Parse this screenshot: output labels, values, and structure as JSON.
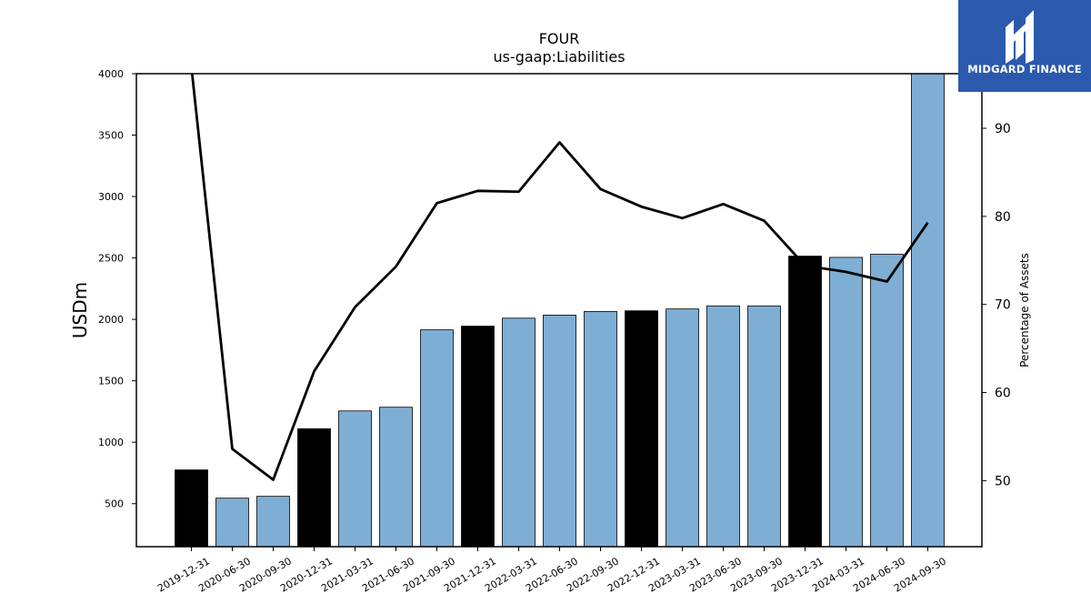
{
  "brand": {
    "name": "MIDGARD FINANCE",
    "color": "#2b59ad"
  },
  "chart_data": {
    "type": "bar",
    "title": "FOUR",
    "subtitle": "us-gaap:Liabilities",
    "ylabel": "USDm",
    "y2label": "Percentage of Assets",
    "ylim": [
      150,
      4000
    ],
    "y2lim": [
      42.5,
      96.2
    ],
    "yticks": [
      500,
      1000,
      1500,
      2000,
      2500,
      3000,
      3500,
      4000
    ],
    "y2ticks": [
      50,
      60,
      70,
      80,
      90
    ],
    "categories": [
      "2019-12-31",
      "2020-06-30",
      "2020-09-30",
      "2020-12-31",
      "2021-03-31",
      "2021-06-30",
      "2021-09-30",
      "2021-12-31",
      "2022-03-31",
      "2022-06-30",
      "2022-09-30",
      "2022-12-31",
      "2023-03-31",
      "2023-06-30",
      "2023-09-30",
      "2023-12-31",
      "2024-03-31",
      "2024-06-30",
      "2024-09-30"
    ],
    "values": [
      775,
      545,
      560,
      1110,
      1255,
      1285,
      1915,
      1945,
      2010,
      2035,
      2065,
      2070,
      2085,
      2110,
      2110,
      2515,
      2505,
      2530,
      4000
    ],
    "bar_colors": {
      "year_end": "#000000",
      "quarter": "#7eaed3"
    },
    "year_end": [
      true,
      false,
      false,
      true,
      false,
      false,
      false,
      true,
      false,
      false,
      false,
      true,
      false,
      false,
      false,
      true,
      false,
      false,
      false
    ],
    "line": {
      "axis": "right",
      "values": [
        97,
        53.6,
        50.1,
        62.4,
        69.7,
        74.3,
        81.5,
        82.9,
        82.8,
        88.4,
        83.1,
        81.1,
        79.8,
        81.4,
        79.5,
        74.4,
        73.7,
        72.6,
        79.3
      ]
    }
  }
}
